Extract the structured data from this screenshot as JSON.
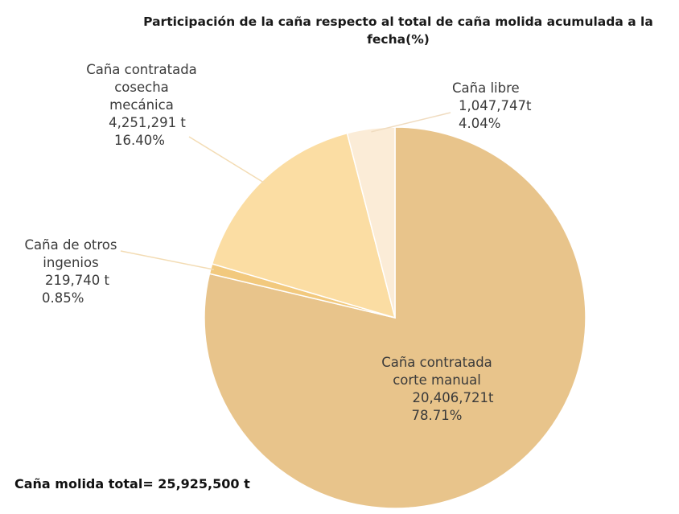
{
  "chart_data": {
    "type": "pie",
    "title": "Participación de la caña respecto al total de caña molida acumulada a la fecha(%)",
    "slices": [
      {
        "label_lines": [
          "Caña contratada",
          "corte manual"
        ],
        "value_text": "20,406,721t",
        "percent_text": "78.71%",
        "value": 20406721,
        "percent": 78.71,
        "color": "#e8c48b"
      },
      {
        "label_lines": [
          "Caña de otros",
          "ingenios"
        ],
        "value_text": "219,740 t",
        "percent_text": "0.85%",
        "value": 219740,
        "percent": 0.85,
        "color": "#f2c97e"
      },
      {
        "label_lines": [
          "Caña contratada",
          "cosecha",
          "mecánica"
        ],
        "value_text": "4,251,291 t",
        "percent_text": "16.40%",
        "value": 4251291,
        "percent": 16.4,
        "color": "#fbdda3"
      },
      {
        "label_lines": [
          "Caña libre"
        ],
        "value_text": "1,047,747t",
        "percent_text": "4.04%",
        "value": 1047747,
        "percent": 4.04,
        "color": "#fbecd7"
      }
    ],
    "footer": "Caña molida total= 25,925,500 t"
  }
}
